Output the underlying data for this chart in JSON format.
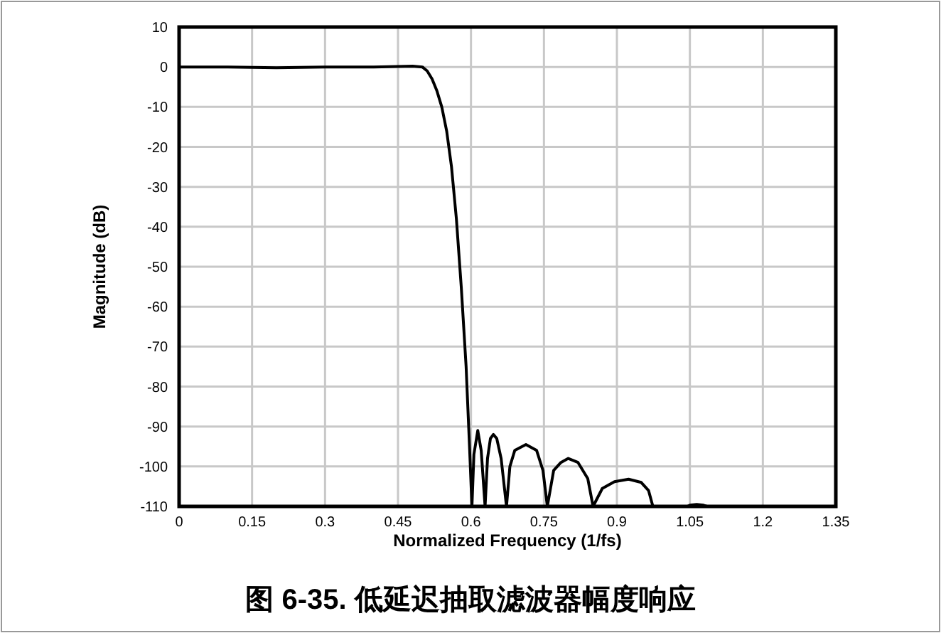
{
  "chart_data": {
    "type": "line",
    "title": "图 6-35. 低延迟抽取滤波器幅度响应",
    "xlabel": "Normalized Frequency (1/fs)",
    "ylabel": "Magnitude (dB)",
    "xlim": [
      0,
      1.35
    ],
    "xticks": [
      0,
      0.15,
      0.3,
      0.45,
      0.6,
      0.75,
      0.9,
      1.05,
      1.2,
      1.35
    ],
    "ylim": [
      -110,
      10
    ],
    "yticks": [
      -110,
      -100,
      -90,
      -80,
      -70,
      -60,
      -50,
      -40,
      -30,
      -20,
      -10,
      0,
      10
    ],
    "grid": true,
    "marker": "none",
    "line_style": "solid",
    "series": [
      {
        "color": "#000000",
        "x": [
          0,
          0.1,
          0.2,
          0.3,
          0.4,
          0.48,
          0.5,
          0.51,
          0.52,
          0.53,
          0.54,
          0.55,
          0.56,
          0.57,
          0.58,
          0.59,
          0.597,
          0.602,
          0.606,
          0.614,
          0.621,
          0.629,
          0.634,
          0.64,
          0.646,
          0.653,
          0.662,
          0.673,
          0.68,
          0.69,
          0.713,
          0.735,
          0.748,
          0.757,
          0.77,
          0.785,
          0.8,
          0.82,
          0.84,
          0.851,
          0.87,
          0.895,
          0.924,
          0.95,
          0.965,
          0.974,
          1.045,
          1.05,
          1.064,
          1.078,
          1.085,
          1.35
        ],
        "values": [
          0,
          0,
          -0.2,
          0,
          0,
          0.2,
          0,
          -1,
          -3,
          -6,
          -10,
          -16,
          -25,
          -38,
          -55,
          -75,
          -95,
          -110,
          -97,
          -91,
          -96,
          -110,
          -98,
          -93,
          -92,
          -93,
          -98,
          -110,
          -100,
          -96,
          -94.5,
          -96,
          -101,
          -110,
          -101,
          -99,
          -98,
          -99,
          -103,
          -110,
          -105.5,
          -103.8,
          -103.2,
          -104,
          -106,
          -110,
          -110,
          -109.7,
          -109.5,
          -109.7,
          -110,
          -110
        ]
      }
    ]
  }
}
